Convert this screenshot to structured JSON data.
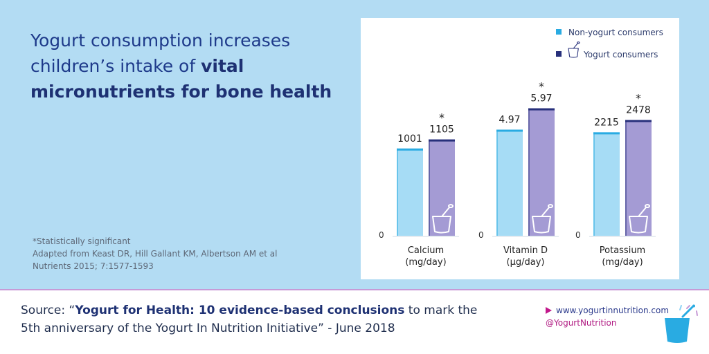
{
  "headline": {
    "line1": "Yogurt consumption increases",
    "line2_plain": "children’s intake of ",
    "line2_bold": "vital",
    "line3_bold": "micronutrients for bone health"
  },
  "notes": {
    "significance": "*Statistically significant",
    "citation1": "Adapted from Keast DR, Hill Gallant KM, Albertson AM et al",
    "citation2": "Nutrients 2015; 7:1577-1593"
  },
  "footer": {
    "source_prefix": "Source: “",
    "source_bold": "Yogurt for Health: 10 evidence-based conclusions",
    "source_rest1": " to mark the",
    "source_line2": "5th anniversary of the Yogurt In Nutrition Initiative” - June 2018",
    "website": "www.yogurtinnutrition.com",
    "twitter": "@YogurtNutrition"
  },
  "colors": {
    "non_yogurt_fill": "#a6dcf5",
    "non_yogurt_edge": "#29abe2",
    "yogurt_fill": "#a49bd4",
    "yogurt_edge": "#27307b"
  },
  "chart_data": {
    "type": "bar",
    "legend_position": "top-right",
    "grid": false,
    "series_names": [
      "Non-yogurt consumers",
      "Yogurt consumers"
    ],
    "groups": [
      {
        "label": "Calcium",
        "unit": "(mg/day)",
        "zero_label": "0",
        "values": [
          1001,
          1105
        ],
        "value_labels": [
          "1001",
          "1105"
        ],
        "significant": [
          false,
          true
        ],
        "ymax": 1800
      },
      {
        "label": "Vitamin D",
        "unit": "(µg/day)",
        "zero_label": "0",
        "values": [
          4.97,
          5.97
        ],
        "value_labels": [
          "4.97",
          "5.97"
        ],
        "significant": [
          false,
          true
        ],
        "ymax": 7.35
      },
      {
        "label": "Potassium",
        "unit": "(mg/day)",
        "zero_label": "0",
        "values": [
          2215,
          2478
        ],
        "value_labels": [
          "2215",
          "2478"
        ],
        "significant": [
          false,
          true
        ],
        "ymax": 3360
      }
    ],
    "significance_marker": "*"
  }
}
